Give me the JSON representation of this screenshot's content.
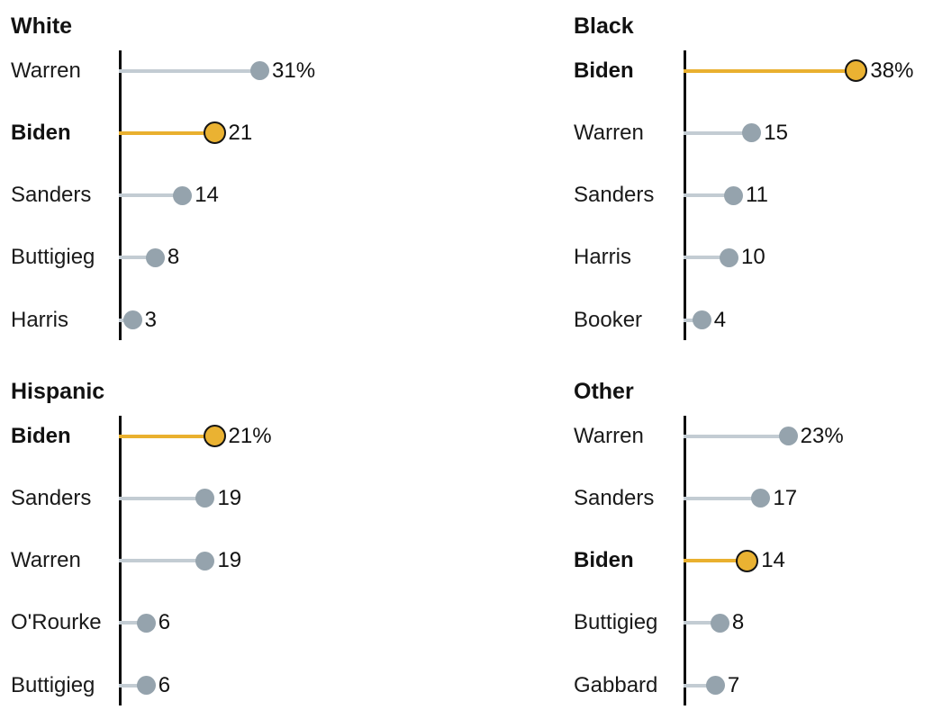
{
  "colors": {
    "highlight_line": "#e9b02f",
    "highlight_dot_fill": "#eab232",
    "highlight_dot_stroke": "#141414",
    "gray_dot": "#95a3ad",
    "gray_line": "#c3ccd3",
    "axis": "#0e0e0e",
    "text": "#121212"
  },
  "panels": [
    {
      "title": "White",
      "rows": [
        {
          "label": "Warren",
          "value": 31,
          "display": "31%",
          "highlight": false
        },
        {
          "label": "Biden",
          "value": 21,
          "display": "21",
          "highlight": true
        },
        {
          "label": "Sanders",
          "value": 14,
          "display": "14",
          "highlight": false
        },
        {
          "label": "Buttigieg",
          "value": 8,
          "display": "8",
          "highlight": false
        },
        {
          "label": "Harris",
          "value": 3,
          "display": "3",
          "highlight": false
        }
      ]
    },
    {
      "title": "Black",
      "rows": [
        {
          "label": "Biden",
          "value": 38,
          "display": "38%",
          "highlight": true
        },
        {
          "label": "Warren",
          "value": 15,
          "display": "15",
          "highlight": false
        },
        {
          "label": "Sanders",
          "value": 11,
          "display": "11",
          "highlight": false
        },
        {
          "label": "Harris",
          "value": 10,
          "display": "10",
          "highlight": false
        },
        {
          "label": "Booker",
          "value": 4,
          "display": "4",
          "highlight": false
        }
      ]
    },
    {
      "title": "Hispanic",
      "rows": [
        {
          "label": "Biden",
          "value": 21,
          "display": "21%",
          "highlight": true
        },
        {
          "label": "Sanders",
          "value": 19,
          "display": "19",
          "highlight": false
        },
        {
          "label": "Warren",
          "value": 19,
          "display": "19",
          "highlight": false
        },
        {
          "label": "O'Rourke",
          "value": 6,
          "display": "6",
          "highlight": false
        },
        {
          "label": "Buttigieg",
          "value": 6,
          "display": "6",
          "highlight": false
        }
      ]
    },
    {
      "title": "Other",
      "rows": [
        {
          "label": "Warren",
          "value": 23,
          "display": "23%",
          "highlight": false
        },
        {
          "label": "Sanders",
          "value": 17,
          "display": "17",
          "highlight": false
        },
        {
          "label": "Biden",
          "value": 14,
          "display": "14",
          "highlight": true
        },
        {
          "label": "Buttigieg",
          "value": 8,
          "display": "8",
          "highlight": false
        },
        {
          "label": "Gabbard",
          "value": 7,
          "display": "7",
          "highlight": false
        }
      ]
    }
  ],
  "chart_data": [
    {
      "type": "bar",
      "subtype": "lollipop",
      "orientation": "horizontal",
      "title": "White",
      "categories": [
        "Warren",
        "Biden",
        "Sanders",
        "Buttigieg",
        "Harris"
      ],
      "values": [
        31,
        21,
        14,
        8,
        3
      ],
      "value_labels": [
        "31%",
        "21",
        "14",
        "8",
        "3"
      ],
      "highlighted_category": "Biden",
      "unit": "%",
      "xlim": [
        0,
        40
      ],
      "grid": false,
      "legend": false
    },
    {
      "type": "bar",
      "subtype": "lollipop",
      "orientation": "horizontal",
      "title": "Black",
      "categories": [
        "Biden",
        "Warren",
        "Sanders",
        "Harris",
        "Booker"
      ],
      "values": [
        38,
        15,
        11,
        10,
        4
      ],
      "value_labels": [
        "38%",
        "15",
        "11",
        "10",
        "4"
      ],
      "highlighted_category": "Biden",
      "unit": "%",
      "xlim": [
        0,
        40
      ],
      "grid": false,
      "legend": false
    },
    {
      "type": "bar",
      "subtype": "lollipop",
      "orientation": "horizontal",
      "title": "Hispanic",
      "categories": [
        "Biden",
        "Sanders",
        "Warren",
        "O'Rourke",
        "Buttigieg"
      ],
      "values": [
        21,
        19,
        19,
        6,
        6
      ],
      "value_labels": [
        "21%",
        "19",
        "19",
        "6",
        "6"
      ],
      "highlighted_category": "Biden",
      "unit": "%",
      "xlim": [
        0,
        40
      ],
      "grid": false,
      "legend": false
    },
    {
      "type": "bar",
      "subtype": "lollipop",
      "orientation": "horizontal",
      "title": "Other",
      "categories": [
        "Warren",
        "Sanders",
        "Biden",
        "Buttigieg",
        "Gabbard"
      ],
      "values": [
        23,
        17,
        14,
        8,
        7
      ],
      "value_labels": [
        "23%",
        "17",
        "14",
        "8",
        "7"
      ],
      "highlighted_category": "Biden",
      "unit": "%",
      "xlim": [
        0,
        40
      ],
      "grid": false,
      "legend": false
    }
  ]
}
